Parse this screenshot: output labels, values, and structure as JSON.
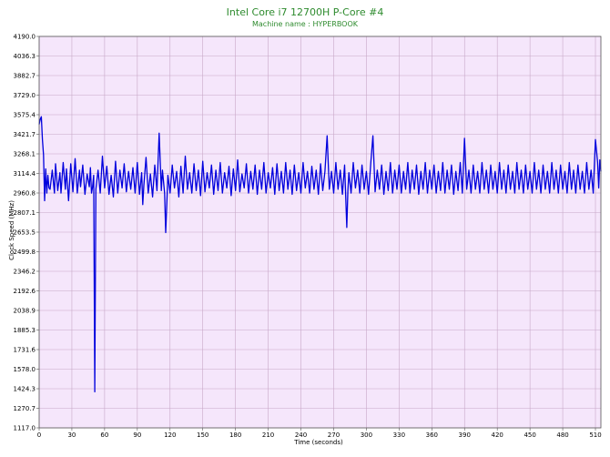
{
  "chart_data": {
    "type": "line",
    "title": "Intel Core i7 12700H P-Core #4",
    "subtitle": "Machine name : HYPERBOOK",
    "xlabel": "Time (seconds)",
    "ylabel": "Clock Speed (MHz)",
    "xlim": [
      0,
      515
    ],
    "ylim": [
      1117.0,
      4190.0
    ],
    "x_ticks": [
      0,
      30,
      60,
      90,
      120,
      150,
      180,
      210,
      240,
      270,
      300,
      330,
      360,
      390,
      420,
      450,
      480,
      510
    ],
    "y_ticks": [
      "1117.0",
      "1270.7",
      "1424.3",
      "1578.0",
      "1731.6",
      "1885.3",
      "2038.9",
      "2192.6",
      "2346.2",
      "2499.8",
      "2653.5",
      "2807.1",
      "2960.8",
      "3114.4",
      "3268.1",
      "3421.7",
      "3575.4",
      "3729.0",
      "3882.7",
      "4036.3",
      "4190.0"
    ],
    "grid": true,
    "colors": {
      "plot_background": "#f5e6fb",
      "grid": "#c8a8c8",
      "series": "#0000dd",
      "title": "#2e8b2e"
    },
    "series": [
      {
        "values": [
          [
            0,
            3500
          ],
          [
            1,
            3540
          ],
          [
            2,
            3560
          ],
          [
            3,
            3380
          ],
          [
            4,
            3260
          ],
          [
            5,
            2900
          ],
          [
            6,
            3150
          ],
          [
            7,
            2960
          ],
          [
            8,
            3100
          ],
          [
            9,
            3000
          ],
          [
            10,
            2990
          ],
          [
            12,
            3140
          ],
          [
            14,
            2960
          ],
          [
            15,
            3190
          ],
          [
            17,
            2980
          ],
          [
            19,
            3120
          ],
          [
            20,
            2960
          ],
          [
            22,
            3200
          ],
          [
            24,
            2990
          ],
          [
            25,
            3150
          ],
          [
            27,
            2900
          ],
          [
            29,
            3190
          ],
          [
            31,
            2970
          ],
          [
            33,
            3230
          ],
          [
            35,
            2960
          ],
          [
            37,
            3140
          ],
          [
            38,
            3010
          ],
          [
            40,
            3180
          ],
          [
            42,
            2950
          ],
          [
            44,
            3110
          ],
          [
            46,
            3010
          ],
          [
            47,
            3160
          ],
          [
            48,
            2960
          ],
          [
            49,
            3010
          ],
          [
            50,
            3100
          ],
          [
            51,
            1400
          ],
          [
            52,
            2990
          ],
          [
            54,
            3140
          ],
          [
            56,
            2960
          ],
          [
            58,
            3250
          ],
          [
            60,
            3000
          ],
          [
            62,
            3170
          ],
          [
            64,
            2950
          ],
          [
            66,
            3100
          ],
          [
            68,
            2930
          ],
          [
            70,
            3210
          ],
          [
            72,
            2960
          ],
          [
            74,
            3140
          ],
          [
            76,
            3000
          ],
          [
            78,
            3190
          ],
          [
            80,
            2970
          ],
          [
            82,
            3130
          ],
          [
            84,
            2990
          ],
          [
            86,
            3160
          ],
          [
            88,
            2960
          ],
          [
            90,
            3200
          ],
          [
            92,
            2950
          ],
          [
            94,
            3120
          ],
          [
            95,
            2870
          ],
          [
            96,
            3020
          ],
          [
            98,
            3240
          ],
          [
            100,
            2960
          ],
          [
            102,
            3110
          ],
          [
            104,
            2930
          ],
          [
            106,
            3180
          ],
          [
            108,
            2980
          ],
          [
            110,
            3430
          ],
          [
            112,
            2980
          ],
          [
            113,
            3140
          ],
          [
            115,
            2960
          ],
          [
            116,
            2650
          ],
          [
            118,
            3100
          ],
          [
            120,
            2960
          ],
          [
            122,
            3180
          ],
          [
            124,
            3000
          ],
          [
            126,
            3130
          ],
          [
            128,
            2930
          ],
          [
            130,
            3170
          ],
          [
            132,
            2960
          ],
          [
            134,
            3250
          ],
          [
            136,
            2990
          ],
          [
            138,
            3120
          ],
          [
            140,
            2960
          ],
          [
            142,
            3190
          ],
          [
            144,
            2980
          ],
          [
            146,
            3140
          ],
          [
            148,
            2940
          ],
          [
            150,
            3210
          ],
          [
            152,
            2970
          ],
          [
            154,
            3120
          ],
          [
            156,
            3000
          ],
          [
            158,
            3180
          ],
          [
            160,
            2950
          ],
          [
            162,
            3140
          ],
          [
            164,
            2980
          ],
          [
            166,
            3200
          ],
          [
            168,
            2960
          ],
          [
            170,
            3120
          ],
          [
            172,
            3000
          ],
          [
            174,
            3170
          ],
          [
            176,
            2940
          ],
          [
            178,
            3150
          ],
          [
            180,
            2980
          ],
          [
            182,
            3220
          ],
          [
            184,
            2970
          ],
          [
            186,
            3110
          ],
          [
            188,
            3000
          ],
          [
            190,
            3190
          ],
          [
            192,
            2960
          ],
          [
            194,
            3130
          ],
          [
            196,
            2990
          ],
          [
            198,
            3180
          ],
          [
            200,
            2950
          ],
          [
            202,
            3140
          ],
          [
            204,
            2990
          ],
          [
            206,
            3200
          ],
          [
            208,
            2960
          ],
          [
            210,
            3120
          ],
          [
            212,
            3000
          ],
          [
            214,
            3160
          ],
          [
            216,
            2950
          ],
          [
            218,
            3190
          ],
          [
            220,
            2980
          ],
          [
            222,
            3130
          ],
          [
            224,
            2960
          ],
          [
            226,
            3200
          ],
          [
            228,
            2990
          ],
          [
            230,
            3140
          ],
          [
            232,
            2950
          ],
          [
            234,
            3180
          ],
          [
            236,
            2980
          ],
          [
            238,
            3120
          ],
          [
            240,
            2960
          ],
          [
            242,
            3200
          ],
          [
            244,
            3000
          ],
          [
            246,
            3130
          ],
          [
            248,
            2960
          ],
          [
            250,
            3170
          ],
          [
            252,
            2990
          ],
          [
            254,
            3140
          ],
          [
            256,
            2950
          ],
          [
            258,
            3190
          ],
          [
            260,
            2980
          ],
          [
            262,
            3130
          ],
          [
            264,
            3410
          ],
          [
            266,
            2990
          ],
          [
            268,
            3130
          ],
          [
            270,
            2960
          ],
          [
            272,
            3200
          ],
          [
            274,
            2990
          ],
          [
            276,
            3140
          ],
          [
            278,
            2950
          ],
          [
            280,
            3180
          ],
          [
            282,
            2690
          ],
          [
            283,
            2980
          ],
          [
            284,
            3120
          ],
          [
            286,
            2960
          ],
          [
            288,
            3200
          ],
          [
            290,
            3000
          ],
          [
            292,
            3140
          ],
          [
            294,
            2960
          ],
          [
            296,
            3180
          ],
          [
            298,
            2990
          ],
          [
            300,
            3130
          ],
          [
            302,
            2950
          ],
          [
            304,
            3190
          ],
          [
            306,
            3410
          ],
          [
            308,
            2970
          ],
          [
            310,
            3140
          ],
          [
            312,
            2990
          ],
          [
            314,
            3180
          ],
          [
            316,
            2950
          ],
          [
            318,
            3130
          ],
          [
            320,
            2980
          ],
          [
            322,
            3200
          ],
          [
            324,
            2960
          ],
          [
            326,
            3140
          ],
          [
            328,
            2990
          ],
          [
            330,
            3180
          ],
          [
            332,
            2960
          ],
          [
            334,
            3130
          ],
          [
            336,
            2990
          ],
          [
            338,
            3200
          ],
          [
            340,
            2960
          ],
          [
            342,
            3140
          ],
          [
            344,
            2990
          ],
          [
            346,
            3180
          ],
          [
            348,
            2950
          ],
          [
            350,
            3130
          ],
          [
            352,
            2990
          ],
          [
            354,
            3200
          ],
          [
            356,
            2960
          ],
          [
            358,
            3140
          ],
          [
            360,
            2990
          ],
          [
            362,
            3180
          ],
          [
            364,
            2960
          ],
          [
            366,
            3130
          ],
          [
            368,
            2980
          ],
          [
            370,
            3200
          ],
          [
            372,
            2960
          ],
          [
            374,
            3140
          ],
          [
            376,
            2990
          ],
          [
            378,
            3180
          ],
          [
            380,
            2950
          ],
          [
            382,
            3130
          ],
          [
            384,
            2980
          ],
          [
            386,
            3200
          ],
          [
            388,
            2960
          ],
          [
            390,
            3390
          ],
          [
            392,
            2990
          ],
          [
            394,
            3140
          ],
          [
            396,
            2960
          ],
          [
            398,
            3180
          ],
          [
            400,
            2990
          ],
          [
            402,
            3130
          ],
          [
            404,
            2960
          ],
          [
            406,
            3200
          ],
          [
            408,
            2990
          ],
          [
            410,
            3140
          ],
          [
            412,
            2960
          ],
          [
            414,
            3180
          ],
          [
            416,
            2990
          ],
          [
            418,
            3130
          ],
          [
            420,
            2960
          ],
          [
            422,
            3200
          ],
          [
            424,
            2990
          ],
          [
            426,
            3140
          ],
          [
            428,
            2960
          ],
          [
            430,
            3180
          ],
          [
            432,
            2990
          ],
          [
            434,
            3130
          ],
          [
            436,
            2960
          ],
          [
            438,
            3200
          ],
          [
            440,
            2990
          ],
          [
            442,
            3140
          ],
          [
            444,
            2960
          ],
          [
            446,
            3180
          ],
          [
            448,
            2990
          ],
          [
            450,
            3130
          ],
          [
            452,
            2960
          ],
          [
            454,
            3200
          ],
          [
            456,
            2990
          ],
          [
            458,
            3140
          ],
          [
            460,
            2960
          ],
          [
            462,
            3180
          ],
          [
            464,
            2990
          ],
          [
            466,
            3130
          ],
          [
            468,
            2960
          ],
          [
            470,
            3200
          ],
          [
            472,
            2990
          ],
          [
            474,
            3140
          ],
          [
            476,
            2960
          ],
          [
            478,
            3180
          ],
          [
            480,
            2990
          ],
          [
            482,
            3130
          ],
          [
            484,
            2960
          ],
          [
            486,
            3200
          ],
          [
            488,
            2990
          ],
          [
            490,
            3140
          ],
          [
            492,
            2960
          ],
          [
            494,
            3180
          ],
          [
            496,
            2990
          ],
          [
            498,
            3130
          ],
          [
            500,
            2960
          ],
          [
            502,
            3200
          ],
          [
            504,
            2990
          ],
          [
            506,
            3140
          ],
          [
            508,
            2960
          ],
          [
            510,
            3380
          ],
          [
            512,
            3200
          ],
          [
            513,
            3000
          ],
          [
            514,
            3220
          ],
          [
            515,
            3130
          ]
        ]
      }
    ]
  }
}
